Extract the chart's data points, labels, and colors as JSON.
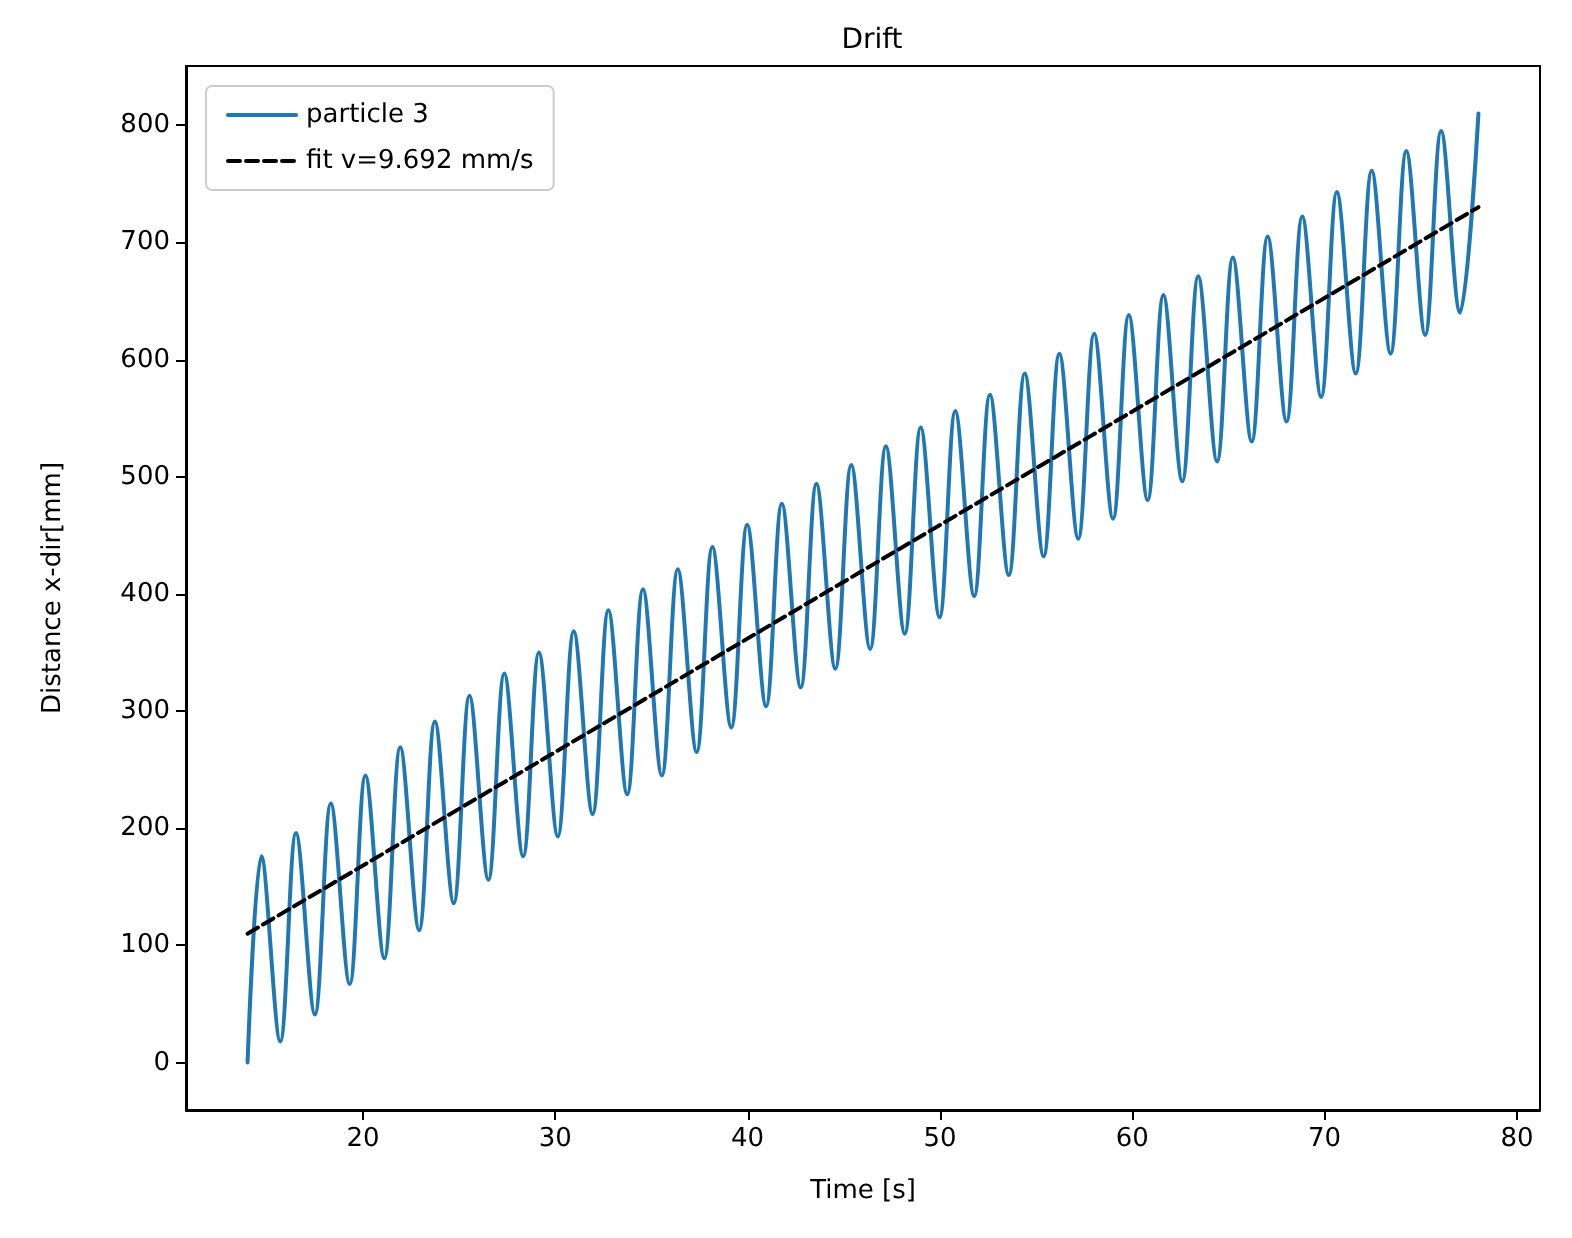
{
  "chart_data": {
    "type": "line",
    "title": "Drift",
    "xlabel": "Time [s]",
    "ylabel": "Distance x-dir[mm]",
    "xlim": [
      10.8,
      81.2
    ],
    "ylim": [
      -40.5,
      850.5
    ],
    "xticks": [
      20,
      30,
      40,
      50,
      60,
      70,
      80
    ],
    "yticks": [
      0,
      100,
      200,
      300,
      400,
      500,
      600,
      700,
      800
    ],
    "grid": false,
    "legend": "top left",
    "marker": "none",
    "series": [
      {
        "name": "particle 3",
        "color": "#1f77b4",
        "line_style": "solid",
        "x": [
          14.0,
          14.72,
          15.7,
          16.52,
          17.5,
          18.33,
          19.31,
          20.13,
          21.11,
          21.94,
          22.92,
          23.74,
          24.72,
          25.54,
          26.52,
          27.35,
          28.33,
          29.15,
          30.13,
          30.96,
          31.94,
          32.76,
          33.74,
          34.56,
          35.54,
          36.37,
          37.35,
          38.17,
          39.15,
          39.98,
          40.96,
          41.78,
          42.76,
          43.58,
          44.56,
          45.39,
          46.37,
          47.19,
          48.17,
          49.0,
          49.98,
          50.8,
          51.78,
          52.6,
          53.58,
          54.41,
          55.39,
          56.21,
          57.19,
          58.02,
          59.0,
          59.82,
          60.8,
          61.62,
          62.6,
          63.43,
          64.41,
          65.23,
          66.21,
          67.04,
          68.02,
          68.84,
          69.82,
          70.64,
          71.62,
          72.45,
          73.43,
          74.25,
          75.23,
          76.06,
          77.04,
          78.0
        ],
        "values": [
          0,
          176,
          18,
          196,
          41,
          221,
          67,
          245,
          89,
          269,
          113,
          291,
          136,
          313,
          156,
          332,
          176,
          350,
          193,
          368,
          212,
          386,
          229,
          404,
          245,
          421,
          265,
          440,
          286,
          459,
          304,
          477,
          320,
          494,
          336,
          510,
          353,
          526,
          366,
          542,
          380,
          556,
          398,
          570,
          416,
          588,
          432,
          605,
          447,
          622,
          464,
          638,
          480,
          655,
          496,
          671,
          513,
          687,
          530,
          705,
          547,
          722,
          568,
          743,
          588,
          761,
          605,
          778,
          621,
          795,
          640,
          810
        ]
      },
      {
        "name": "fit v=9.692 mm/s",
        "color": "#000000",
        "line_style": "dashed",
        "x": [
          14.0,
          78.0
        ],
        "values": [
          110,
          730
        ]
      }
    ]
  }
}
